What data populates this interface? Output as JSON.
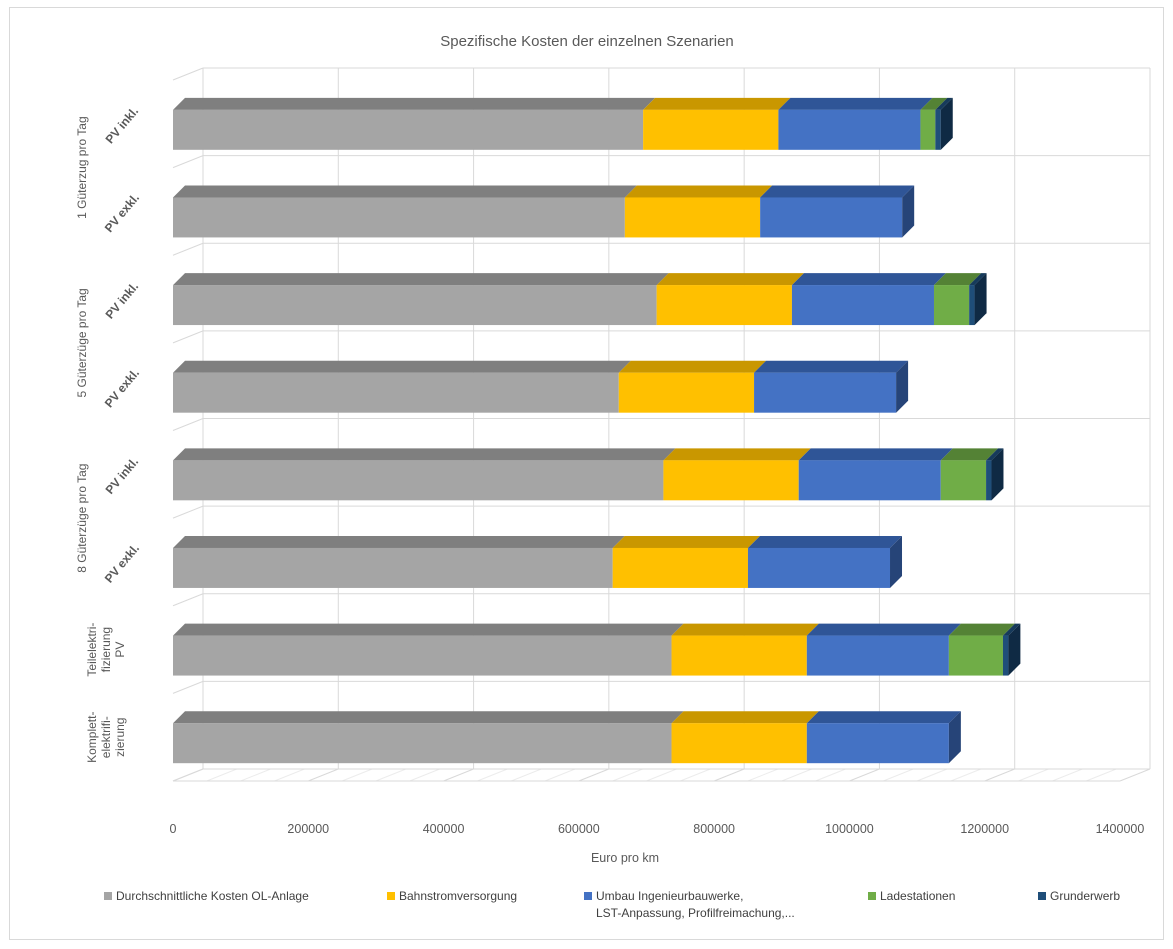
{
  "chart_data": {
    "type": "bar",
    "orientation": "horizontal",
    "stacked": true,
    "three_d": true,
    "title": "Spezifische  Kosten der einzelnen Szenarien",
    "xlabel": "Euro pro km",
    "ylabel": "",
    "xlim": [
      0,
      1400000
    ],
    "xticks": [
      "0",
      "200000",
      "400000",
      "600000",
      "800000",
      "1000000",
      "1200000",
      "1400000"
    ],
    "grid": true,
    "legend_position": "bottom",
    "groups": [
      {
        "lines": [
          "1 Güterzug pro Tag"
        ]
      },
      {
        "lines": [
          "5 Güterzüge pro Tag"
        ]
      },
      {
        "lines": [
          "8 Güterzüge pro Tag"
        ]
      },
      {
        "lines": [
          "Teilelektri-",
          "fizierung",
          "PV"
        ]
      },
      {
        "lines": [
          "Komplett-",
          "elektrifi-",
          "zierung"
        ]
      }
    ],
    "rows": [
      {
        "group": 0,
        "sub": "PV inkl."
      },
      {
        "group": 0,
        "sub": "PV exkl."
      },
      {
        "group": 1,
        "sub": "PV inkl."
      },
      {
        "group": 1,
        "sub": "PV exkl."
      },
      {
        "group": 2,
        "sub": "PV inkl."
      },
      {
        "group": 2,
        "sub": "PV exkl."
      },
      {
        "group": 3,
        "sub": ""
      },
      {
        "group": 4,
        "sub": ""
      }
    ],
    "series": [
      {
        "name": "Durchschnittliche Kosten OL-Anlage",
        "color": "#a5a5a5",
        "top": "#7f7f7f",
        "side": "#6d6d6d",
        "values": [
          695000,
          668000,
          715000,
          659000,
          725000,
          650000,
          737000,
          737000
        ]
      },
      {
        "name": "Bahnstromversorgung",
        "color": "#ffc000",
        "top": "#c99700",
        "side": "#a67c00",
        "values": [
          200000,
          200000,
          200000,
          200000,
          200000,
          200000,
          200000,
          200000
        ]
      },
      {
        "name": "Umbau Ingenieurbauwerke, LST-Anpassung, Profilfreimachung,...",
        "color": "#4472c4",
        "top": "#2f5597",
        "side": "#264478",
        "values": [
          210000,
          210000,
          210000,
          210000,
          210000,
          210000,
          210000,
          210000
        ]
      },
      {
        "name": "Ladestationen",
        "color": "#70ad47",
        "top": "#548235",
        "side": "#43682b",
        "values": [
          22000,
          0,
          52000,
          0,
          67000,
          0,
          80000,
          0
        ]
      },
      {
        "name": "Grunderwerb",
        "color": "#1f4e79",
        "top": "#163a5b",
        "side": "#0f2a44",
        "values": [
          8000,
          0,
          8000,
          0,
          8000,
          0,
          8000,
          0
        ]
      }
    ],
    "legend_lines": [
      [
        "Durchschnittliche Kosten OL-Anlage"
      ],
      [
        "Bahnstromversorgung"
      ],
      [
        "Umbau Ingenieurbauwerke,",
        "LST-Anpassung, Profilfreimachung,..."
      ],
      [
        "Ladestationen"
      ],
      [
        "Grunderwerb"
      ]
    ]
  }
}
